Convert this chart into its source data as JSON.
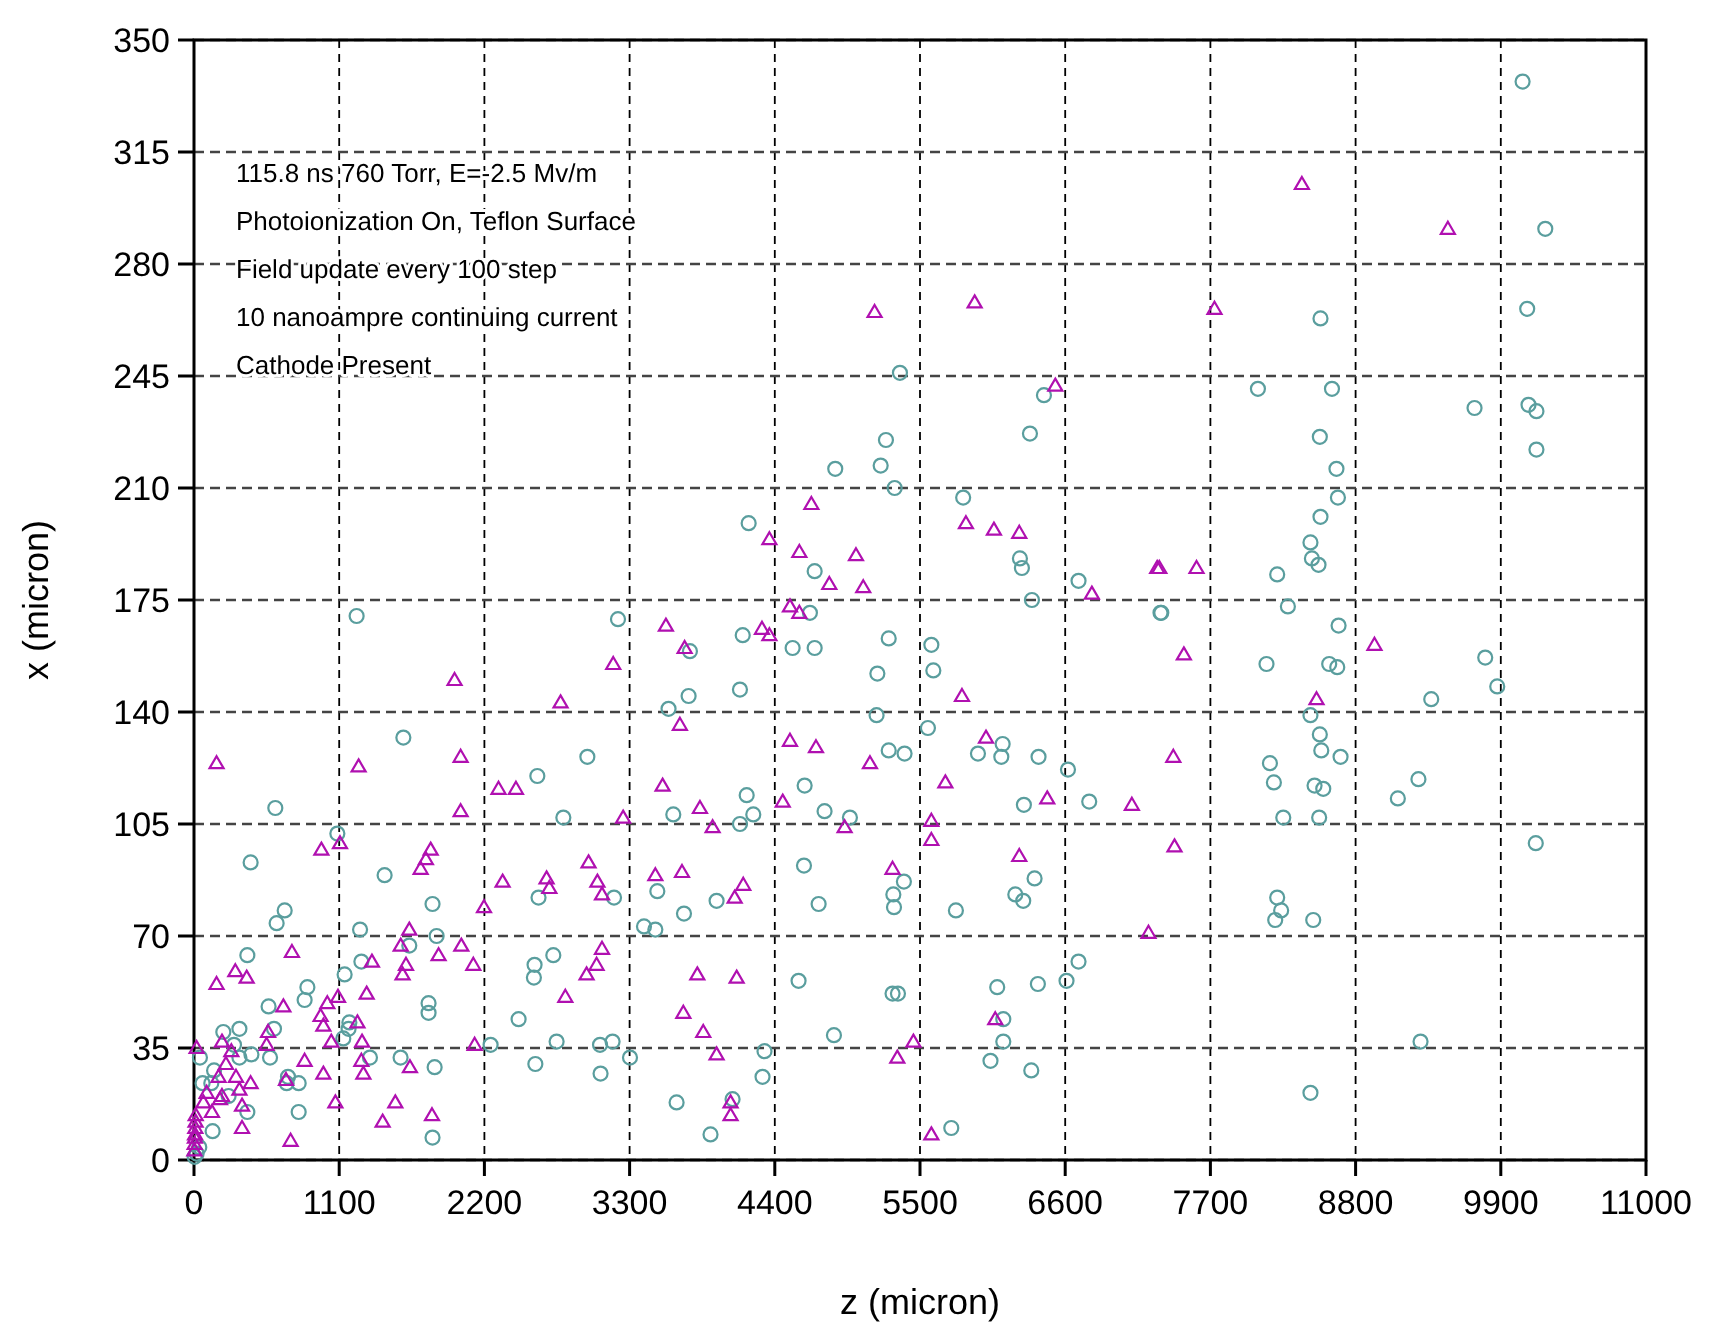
{
  "chart_data": {
    "type": "scatter",
    "xlabel": "z (micron)",
    "ylabel": "x (micron)",
    "xlim": [
      0,
      11000
    ],
    "xticks": [
      0,
      1100,
      2200,
      3300,
      4400,
      5500,
      6600,
      7700,
      8800,
      9900,
      11000
    ],
    "ylim": [
      0,
      350
    ],
    "yticks": [
      0,
      35,
      70,
      105,
      140,
      175,
      210,
      245,
      280,
      315,
      350
    ],
    "grid": true,
    "annotations": [
      "115.8 ns 760 Torr, E=-2.5 Mv/m",
      "Photoionization On,  Teflon Surface",
      "Field update every  100 step",
      "10 nanoampre continuing current",
      "Cathode Present"
    ],
    "series": [
      {
        "color": "#5a9e9e",
        "marker": "circle",
        "x": [
          5,
          20,
          40,
          45,
          65,
          131,
          141,
          152,
          222,
          262,
          303,
          344,
          344,
          404,
          404,
          429,
          435,
          565,
          576,
          606,
          616,
          626,
          687,
          702,
          712,
          793,
          793,
          838,
          859,
          1086,
          1131,
          1141,
          1171,
          1177,
          1232,
          1258,
          1268,
          1333,
          1444,
          1565,
          1586,
          1631,
          1777,
          1777,
          1807,
          1807,
          1823,
          1838,
          2247,
          2459,
          2575,
          2580,
          2586,
          2601,
          2610,
          2722,
          2747,
          2798,
          2980,
          3076,
          3080,
          3171,
          3182,
          3212,
          3303,
          3409,
          3495,
          3510,
          3595,
          3631,
          3656,
          3712,
          3747,
          3757,
          3913,
          3959,
          4080,
          4136,
          4136,
          4157,
          4187,
          4202,
          4237,
          4307,
          4322,
          4535,
          4580,
          4621,
          4626,
          4666,
          4702,
          4702,
          4732,
          4777,
          4848,
          4858,
          4969,
          5171,
          5177,
          5202,
          5242,
          5263,
          5263,
          5292,
          5298,
          5303,
          5308,
          5333,
          5348,
          5378,
          5383,
          5560,
          5586,
          5601,
          5737,
          5772,
          5827,
          5939,
          6034,
          6085,
          6116,
          6126,
          6131,
          6131,
          6222,
          6257,
          6272,
          6282,
          6287,
          6333,
          6343,
          6348,
          6368,
          6393,
          6398,
          6439,
          6610,
          6621,
          6701,
          6701,
          6782,
          7322,
          7328,
          8060,
          8125,
          8151,
          8181,
          8191,
          8206,
          8206,
          8236,
          8252,
          8287,
          8458,
          8458,
          8458,
          8469,
          8479,
          8489,
          8519,
          8524,
          8529,
          8529,
          8534,
          8534,
          8540,
          8555,
          8600,
          8621,
          8655,
          8661,
          8666,
          8671,
          8686,
          9120,
          9276,
          9292,
          9373,
          9701,
          9782,
          9873,
          10065,
          10100,
          10110,
          10165,
          10170,
          10170,
          10237
        ],
        "values": [
          1,
          2,
          4,
          32,
          24,
          24,
          9,
          28,
          40,
          20,
          36,
          41,
          32,
          15,
          64,
          93,
          33,
          48,
          32,
          41,
          110,
          74,
          78,
          24,
          26,
          24,
          15,
          50,
          54,
          102,
          38,
          58,
          41,
          43,
          170,
          72,
          62,
          32,
          89,
          32,
          132,
          67,
          49,
          46,
          80,
          7,
          29,
          70,
          36,
          44,
          57,
          61,
          30,
          120,
          82,
          64,
          37,
          107,
          126,
          36,
          27,
          37,
          82,
          169,
          32,
          73,
          72,
          84,
          141,
          108,
          18,
          77,
          145,
          159,
          8,
          81,
          19,
          147,
          105,
          164,
          114,
          199,
          108,
          26,
          34,
          160,
          56,
          92,
          117,
          171,
          160,
          184,
          80,
          109,
          39,
          216,
          107,
          139,
          152,
          217,
          225,
          163,
          128,
          52,
          83,
          79,
          210,
          52,
          246,
          87,
          127,
          135,
          161,
          153,
          10,
          78,
          207,
          127,
          31,
          54,
          126,
          130,
          44,
          37,
          83,
          188,
          185,
          81,
          111,
          227,
          28,
          175,
          88,
          55,
          126,
          239,
          56,
          122,
          181,
          62,
          112,
          171,
          171,
          241,
          155,
          124,
          118,
          75,
          183,
          82,
          78,
          107,
          173,
          193,
          139,
          21,
          188,
          75,
          117,
          186,
          107,
          226,
          133,
          201,
          263,
          128,
          116,
          155,
          241,
          216,
          154,
          207,
          167,
          126,
          113,
          119,
          37,
          144,
          235,
          157,
          148,
          337,
          266,
          236,
          99,
          234,
          222,
          291
        ]
      },
      {
        "color": "#b010b0",
        "marker": "triangle",
        "x": [
          3,
          5,
          7,
          8,
          10,
          12,
          13,
          20,
          71,
          96,
          136,
          171,
          171,
          186,
          197,
          212,
          212,
          242,
          283,
          313,
          318,
          344,
          364,
          364,
          399,
          429,
          550,
          561,
          677,
          697,
          732,
          742,
          838,
          959,
          965,
          980,
          980,
          1010,
          1040,
          1071,
          1091,
          1106,
          1238,
          1247,
          1268,
          1273,
          1283,
          1308,
          1348,
          1429,
          1525,
          1566,
          1580,
          1606,
          1631,
          1636,
          1717,
          1757,
          1793,
          1803,
          1853,
          1974,
          2020,
          2020,
          2025,
          2116,
          2126,
          2197,
          2307,
          2338,
          2439,
          2671,
          2692,
          2777,
          2813,
          2974,
          2989,
          3050,
          3056,
          3091,
          3091,
          3176,
          3251,
          3495,
          3550,
          3575,
          3681,
          3697,
          3707,
          3717,
          3813,
          3833,
          3858,
          3929,
          3959,
          4065,
          4065,
          4096,
          4111,
          4161,
          4303,
          4359,
          4359,
          4460,
          4515,
          4515,
          4586,
          4586,
          4677,
          4712,
          4813,
          4929,
          5015,
          5070,
          5121,
          5156,
          5292,
          5328,
          5450,
          5586,
          5586,
          5586,
          5692,
          5818,
          5848,
          5914,
          6000,
          6060,
          6070,
          6252,
          6252,
          6464,
          6525,
          6802,
          7105,
          7231,
          7297,
          7313,
          7419,
          7428,
          7499,
          7595,
          7731,
          8393,
          8504,
          8943,
          9499
        ],
        "values": [
          3,
          5,
          7,
          8,
          10,
          12,
          14,
          35,
          18,
          21,
          15,
          55,
          124,
          26,
          19,
          37,
          20,
          30,
          34,
          59,
          26,
          22,
          17,
          10,
          57,
          24,
          36,
          40,
          48,
          25,
          6,
          65,
          31,
          45,
          97,
          42,
          27,
          49,
          37,
          18,
          51,
          99,
          43,
          123,
          31,
          37,
          27,
          52,
          62,
          12,
          18,
          67,
          58,
          61,
          72,
          29,
          91,
          94,
          97,
          14,
          64,
          150,
          126,
          109,
          67,
          61,
          36,
          79,
          116,
          87,
          116,
          88,
          85,
          143,
          51,
          58,
          93,
          61,
          87,
          83,
          66,
          155,
          107,
          89,
          117,
          167,
          136,
          90,
          46,
          160,
          58,
          110,
          40,
          104,
          33,
          18,
          14,
          82,
          57,
          86,
          166,
          194,
          164,
          112,
          131,
          173,
          190,
          171,
          205,
          129,
          180,
          104,
          189,
          179,
          124,
          265,
          91,
          32,
          37,
          106,
          100,
          8,
          118,
          145,
          199,
          268,
          132,
          197,
          44,
          196,
          95,
          113,
          242,
          177,
          111,
          71,
          185,
          185,
          126,
          98,
          158,
          185,
          266,
          305,
          144,
          161,
          291
        ]
      }
    ]
  }
}
